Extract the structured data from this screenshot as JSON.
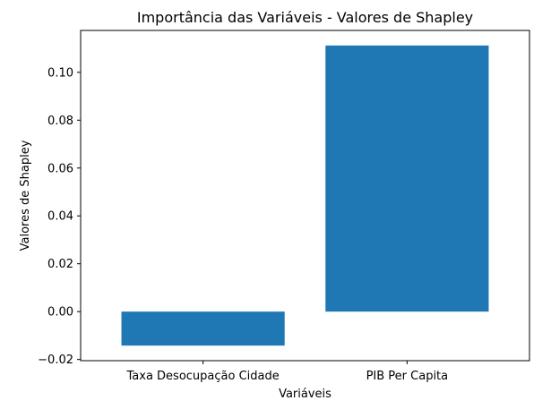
{
  "chart_data": {
    "type": "bar",
    "title": "Importância das Variáveis - Valores de Shapley",
    "xlabel": "Variáveis",
    "ylabel": "Valores de Shapley",
    "categories": [
      "Taxa Desocupação Cidade",
      "PIB Per Capita"
    ],
    "values": [
      -0.0142,
      0.1112
    ],
    "ylim": [
      -0.0205,
      0.1175
    ],
    "yticks": [
      -0.02,
      0.0,
      0.02,
      0.04,
      0.06,
      0.08,
      0.1
    ],
    "ytick_labels": [
      "−0.02",
      "0.00",
      "0.02",
      "0.04",
      "0.06",
      "0.08",
      "0.10"
    ],
    "grid": false,
    "bar_color": "#1f77b4"
  }
}
